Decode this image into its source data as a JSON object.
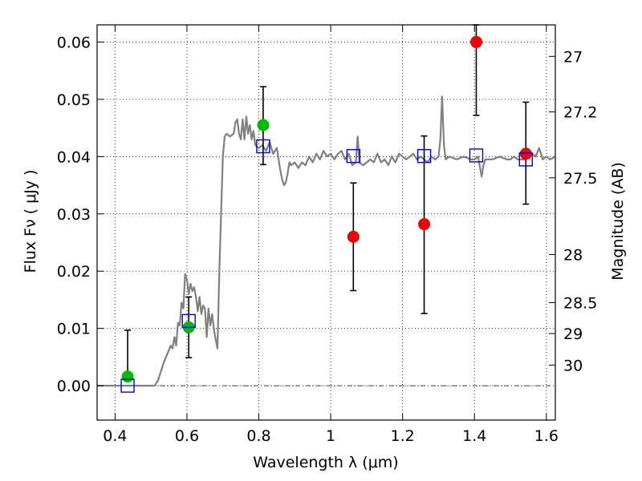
{
  "chart_data": {
    "type": "scatter",
    "xlabel": "Wavelength  λ (μm)",
    "ylabel": "Flux  Fν  ( μJy )",
    "y2label": "Magnitude (AB)",
    "xlim": [
      0.35,
      1.625
    ],
    "ylim": [
      -0.006,
      0.063
    ],
    "xticks": [
      {
        "value": 0.4,
        "label": "0.4"
      },
      {
        "value": 0.6,
        "label": "0.6"
      },
      {
        "value": 0.8,
        "label": "0.8"
      },
      {
        "value": 1.0,
        "label": "1"
      },
      {
        "value": 1.2,
        "label": "1.2"
      },
      {
        "value": 1.4,
        "label": "1.4"
      },
      {
        "value": 1.6,
        "label": "1.6"
      }
    ],
    "yticks": [
      {
        "value": 0.0,
        "label": "0.00"
      },
      {
        "value": 0.01,
        "label": "0.01"
      },
      {
        "value": 0.02,
        "label": "0.02"
      },
      {
        "value": 0.03,
        "label": "0.03"
      },
      {
        "value": 0.04,
        "label": "0.04"
      },
      {
        "value": 0.05,
        "label": "0.05"
      },
      {
        "value": 0.06,
        "label": "0.06"
      }
    ],
    "y2ticks": [
      {
        "label": "27",
        "flux": 0.0575
      },
      {
        "label": "27.2",
        "flux": 0.0478
      },
      {
        "label": "27.5",
        "flux": 0.0363
      },
      {
        "label": "28",
        "flux": 0.0229
      },
      {
        "label": "28.5",
        "flux": 0.0145
      },
      {
        "label": "29",
        "flux": 0.0091
      },
      {
        "label": "30",
        "flux": 0.0036
      }
    ],
    "grid": true,
    "colors": {
      "spectrum": "#808080",
      "green": "#00bb00",
      "red": "#ee0000",
      "model": "#0000dd",
      "errorbar": "#000000"
    },
    "spectrum": [
      [
        0.35,
        0.0
      ],
      [
        0.51,
        0.0
      ],
      [
        0.52,
        0.001
      ],
      [
        0.535,
        0.004
      ],
      [
        0.545,
        0.0055
      ],
      [
        0.555,
        0.007
      ],
      [
        0.56,
        0.0065
      ],
      [
        0.565,
        0.0085
      ],
      [
        0.57,
        0.007
      ],
      [
        0.575,
        0.011
      ],
      [
        0.58,
        0.0105
      ],
      [
        0.585,
        0.0145
      ],
      [
        0.59,
        0.0135
      ],
      [
        0.595,
        0.0195
      ],
      [
        0.6,
        0.0185
      ],
      [
        0.605,
        0.016
      ],
      [
        0.61,
        0.0178
      ],
      [
        0.615,
        0.0165
      ],
      [
        0.62,
        0.0172
      ],
      [
        0.625,
        0.0155
      ],
      [
        0.63,
        0.013
      ],
      [
        0.635,
        0.0155
      ],
      [
        0.64,
        0.0125
      ],
      [
        0.645,
        0.014
      ],
      [
        0.65,
        0.0135
      ],
      [
        0.655,
        0.0085
      ],
      [
        0.66,
        0.0135
      ],
      [
        0.665,
        0.0105
      ],
      [
        0.67,
        0.0125
      ],
      [
        0.675,
        0.01
      ],
      [
        0.68,
        0.008
      ],
      [
        0.685,
        0.0065
      ],
      [
        0.69,
        0.02
      ],
      [
        0.695,
        0.03
      ],
      [
        0.7,
        0.04
      ],
      [
        0.705,
        0.0435
      ],
      [
        0.71,
        0.044
      ],
      [
        0.72,
        0.0435
      ],
      [
        0.73,
        0.044
      ],
      [
        0.735,
        0.046
      ],
      [
        0.74,
        0.0465
      ],
      [
        0.745,
        0.044
      ],
      [
        0.75,
        0.043
      ],
      [
        0.755,
        0.0465
      ],
      [
        0.76,
        0.043
      ],
      [
        0.765,
        0.047
      ],
      [
        0.77,
        0.044
      ],
      [
        0.775,
        0.0455
      ],
      [
        0.78,
        0.043
      ],
      [
        0.785,
        0.0445
      ],
      [
        0.79,
        0.042
      ],
      [
        0.8,
        0.0415
      ],
      [
        0.81,
        0.042
      ],
      [
        0.82,
        0.041
      ],
      [
        0.83,
        0.0425
      ],
      [
        0.84,
        0.0405
      ],
      [
        0.85,
        0.0415
      ],
      [
        0.855,
        0.0395
      ],
      [
        0.86,
        0.0375
      ],
      [
        0.865,
        0.036
      ],
      [
        0.87,
        0.035
      ],
      [
        0.875,
        0.0355
      ],
      [
        0.88,
        0.037
      ],
      [
        0.885,
        0.039
      ],
      [
        0.89,
        0.0385
      ],
      [
        0.9,
        0.039
      ],
      [
        0.91,
        0.038
      ],
      [
        0.92,
        0.039
      ],
      [
        0.93,
        0.0385
      ],
      [
        0.94,
        0.04
      ],
      [
        0.95,
        0.039
      ],
      [
        0.96,
        0.0405
      ],
      [
        0.97,
        0.0395
      ],
      [
        0.98,
        0.041
      ],
      [
        0.99,
        0.04
      ],
      [
        1.0,
        0.0405
      ],
      [
        1.01,
        0.0395
      ],
      [
        1.02,
        0.0405
      ],
      [
        1.03,
        0.041
      ],
      [
        1.04,
        0.0395
      ],
      [
        1.05,
        0.0405
      ],
      [
        1.06,
        0.0385
      ],
      [
        1.07,
        0.039
      ],
      [
        1.075,
        0.0435
      ],
      [
        1.08,
        0.039
      ],
      [
        1.09,
        0.0385
      ],
      [
        1.1,
        0.039
      ],
      [
        1.11,
        0.0395
      ],
      [
        1.12,
        0.039
      ],
      [
        1.13,
        0.0405
      ],
      [
        1.14,
        0.039
      ],
      [
        1.15,
        0.0395
      ],
      [
        1.16,
        0.0385
      ],
      [
        1.17,
        0.04
      ],
      [
        1.18,
        0.039
      ],
      [
        1.19,
        0.0405
      ],
      [
        1.2,
        0.04
      ],
      [
        1.21,
        0.0395
      ],
      [
        1.22,
        0.04
      ],
      [
        1.23,
        0.0405
      ],
      [
        1.24,
        0.0395
      ],
      [
        1.25,
        0.04
      ],
      [
        1.26,
        0.0395
      ],
      [
        1.27,
        0.039
      ],
      [
        1.28,
        0.04
      ],
      [
        1.29,
        0.0395
      ],
      [
        1.3,
        0.04
      ],
      [
        1.305,
        0.043
      ],
      [
        1.31,
        0.0505
      ],
      [
        1.315,
        0.042
      ],
      [
        1.32,
        0.0395
      ],
      [
        1.33,
        0.04
      ],
      [
        1.35,
        0.0395
      ],
      [
        1.37,
        0.04
      ],
      [
        1.39,
        0.0395
      ],
      [
        1.4,
        0.0395
      ],
      [
        1.41,
        0.04
      ],
      [
        1.42,
        0.0365
      ],
      [
        1.425,
        0.0385
      ],
      [
        1.43,
        0.0395
      ],
      [
        1.45,
        0.0395
      ],
      [
        1.47,
        0.04
      ],
      [
        1.49,
        0.0395
      ],
      [
        1.5,
        0.0395
      ],
      [
        1.51,
        0.04
      ],
      [
        1.52,
        0.0395
      ],
      [
        1.54,
        0.0395
      ],
      [
        1.56,
        0.0405
      ],
      [
        1.57,
        0.04
      ],
      [
        1.58,
        0.0415
      ],
      [
        1.59,
        0.0395
      ],
      [
        1.6,
        0.04
      ],
      [
        1.61,
        0.0395
      ],
      [
        1.625,
        0.04
      ]
    ],
    "model_points": [
      {
        "x": 0.435,
        "y": 0.0
      },
      {
        "x": 0.605,
        "y": 0.0113
      },
      {
        "x": 0.812,
        "y": 0.0418
      },
      {
        "x": 1.063,
        "y": 0.0401
      },
      {
        "x": 1.26,
        "y": 0.0401
      },
      {
        "x": 1.405,
        "y": 0.0402
      },
      {
        "x": 1.543,
        "y": 0.0395
      }
    ],
    "observed_points": [
      {
        "x": 0.435,
        "y": 0.0016,
        "yerr_low": 0.0016,
        "yerr_high": 0.0097,
        "color": "green"
      },
      {
        "x": 0.605,
        "y": 0.0102,
        "yerr_low": 0.0049,
        "yerr_high": 0.0155,
        "color": "green"
      },
      {
        "x": 0.812,
        "y": 0.0455,
        "yerr_low": 0.0386,
        "yerr_high": 0.0522,
        "color": "green"
      },
      {
        "x": 1.063,
        "y": 0.026,
        "yerr_low": 0.0166,
        "yerr_high": 0.0354,
        "color": "red"
      },
      {
        "x": 1.26,
        "y": 0.0282,
        "yerr_low": 0.0126,
        "yerr_high": 0.0436,
        "color": "red"
      },
      {
        "x": 1.405,
        "y": 0.06,
        "yerr_low": 0.0472,
        "yerr_high": 0.063,
        "color": "red"
      },
      {
        "x": 1.543,
        "y": 0.0405,
        "yerr_low": 0.0317,
        "yerr_high": 0.0495,
        "color": "red"
      }
    ]
  }
}
